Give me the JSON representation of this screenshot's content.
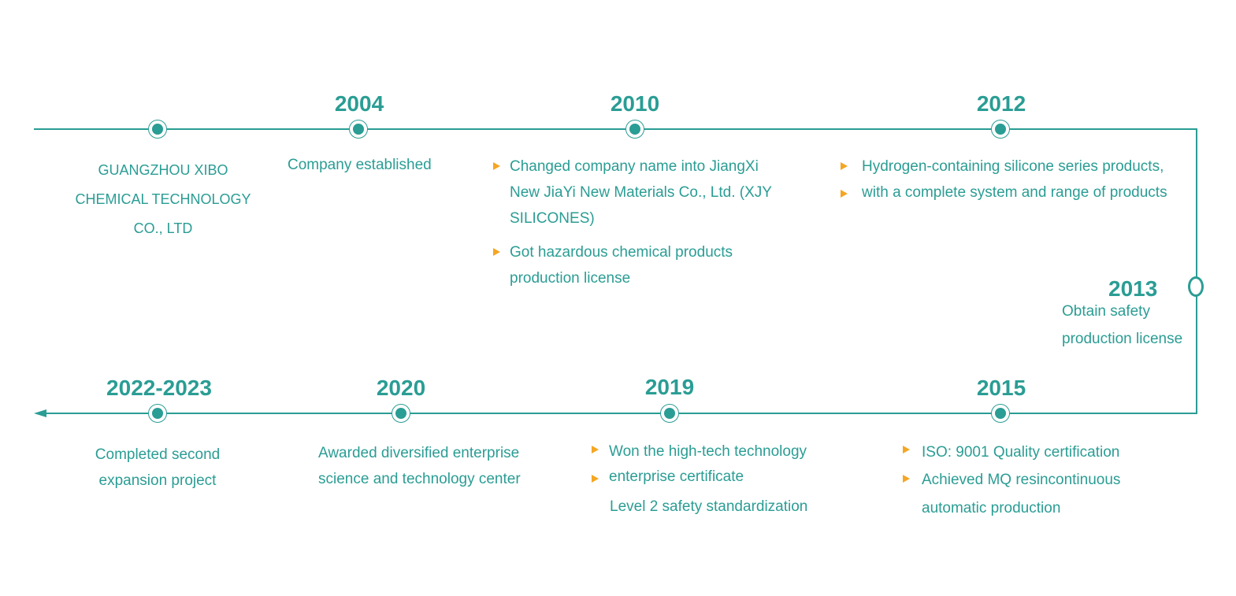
{
  "colors": {
    "accent": "#2a9d94",
    "bullet": "#f5a623",
    "background": "#ffffff"
  },
  "milestones": {
    "origin": {
      "lines": [
        "GUANGZHOU XIBO",
        "CHEMICAL TECHNOLOGY",
        "CO., LTD"
      ]
    },
    "y2004": {
      "year": "2004",
      "text": "Company established"
    },
    "y2010": {
      "year": "2010",
      "item1": [
        "Changed company name into JiangXi",
        "New JiaYi New Materials Co., Ltd. (XJY",
        "SILICONES)"
      ],
      "item2": [
        "Got hazardous chemical products",
        "production license"
      ]
    },
    "y2012": {
      "year": "2012",
      "item1": "Hydrogen-containing silicone series products,",
      "item2": "with a complete system and range of products"
    },
    "y2013": {
      "year": "2013",
      "lines": [
        "Obtain safety",
        "production license"
      ]
    },
    "y2015": {
      "year": "2015",
      "item1": "ISO: 9001 Quality certification",
      "item2": [
        "Achieved MQ resincontinuous",
        "automatic production"
      ]
    },
    "y2019": {
      "year": "2019",
      "item1": "Won the high-tech technology",
      "item2": "enterprise certificate",
      "extra": "Level 2 safety standardization"
    },
    "y2020": {
      "year": "2020",
      "lines": [
        "Awarded diversified enterprise",
        "science and technology center"
      ]
    },
    "y2022": {
      "year": "2022-2023",
      "lines": [
        "Completed second",
        "expansion project"
      ]
    }
  }
}
